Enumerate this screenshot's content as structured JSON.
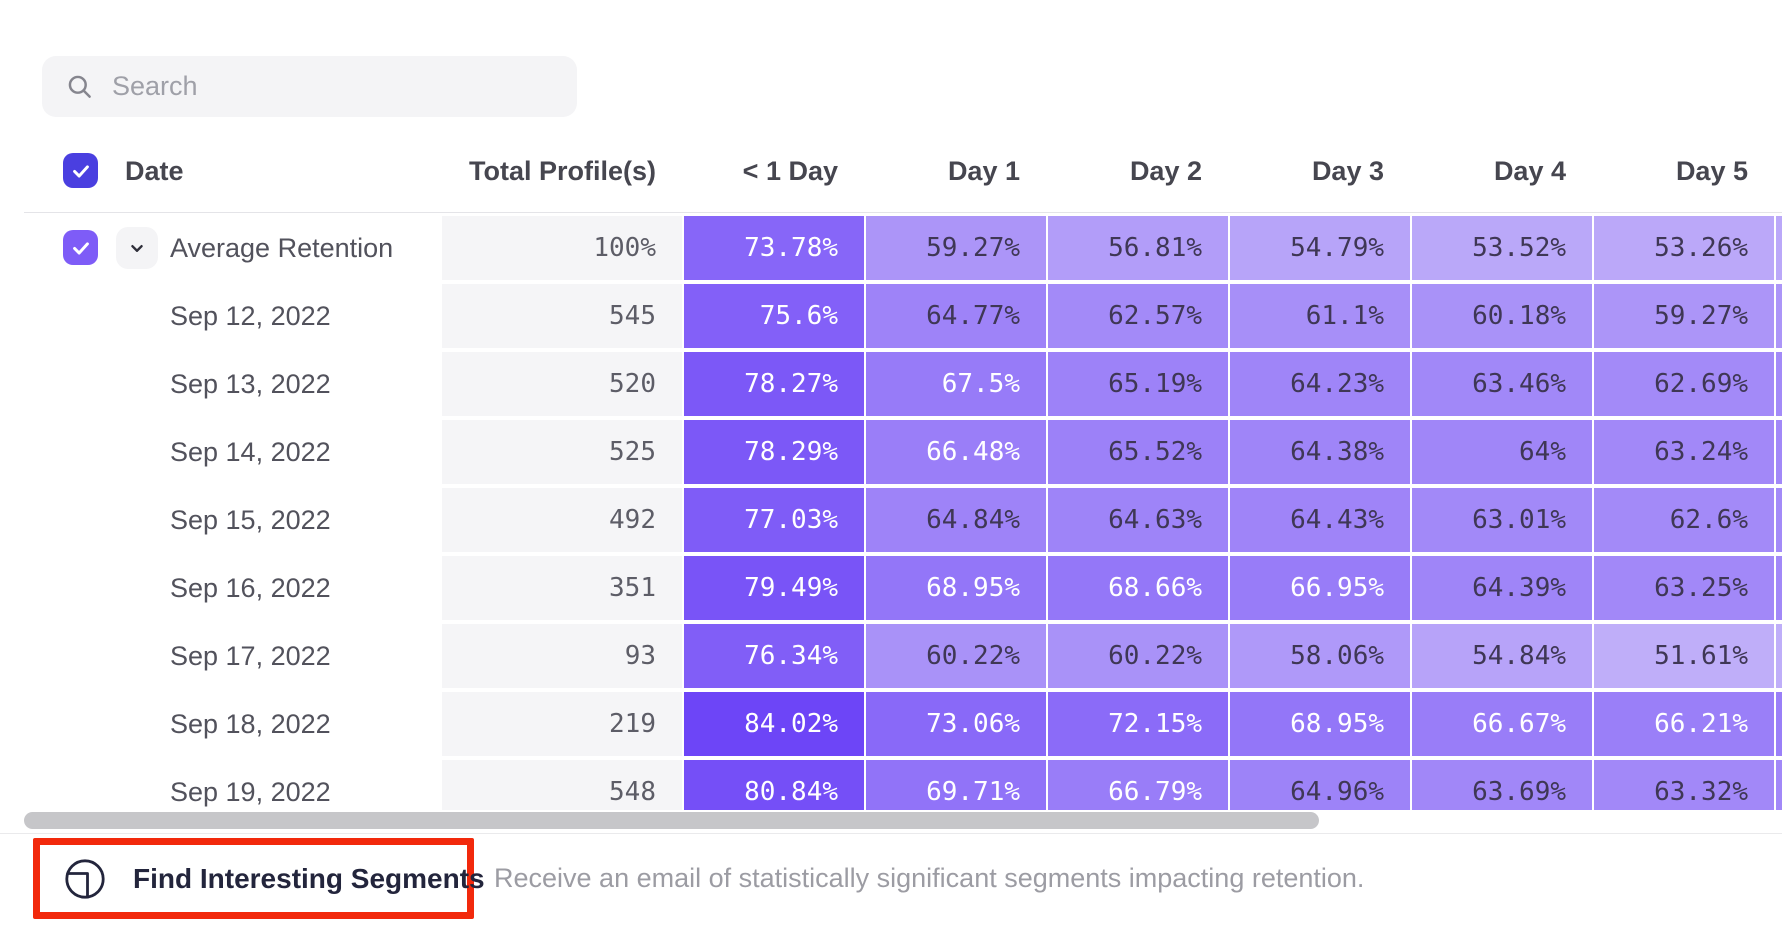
{
  "search": {
    "placeholder": "Search"
  },
  "table": {
    "date_header": "Date",
    "total_header": "Total Profile(s)",
    "day_headers": [
      "< 1 Day",
      "Day 1",
      "Day 2",
      "Day 3",
      "Day 4",
      "Day 5"
    ],
    "rows": [
      {
        "label": "Average Retention",
        "total": "100%",
        "checked": true,
        "expandable": true,
        "values": [
          "73.78%",
          "59.27%",
          "56.81%",
          "54.79%",
          "53.52%",
          "53.26%"
        ]
      },
      {
        "label": "Sep 12, 2022",
        "total": "545",
        "values": [
          "75.6%",
          "64.77%",
          "62.57%",
          "61.1%",
          "60.18%",
          "59.27%"
        ]
      },
      {
        "label": "Sep 13, 2022",
        "total": "520",
        "values": [
          "78.27%",
          "67.5%",
          "65.19%",
          "64.23%",
          "63.46%",
          "62.69%"
        ]
      },
      {
        "label": "Sep 14, 2022",
        "total": "525",
        "values": [
          "78.29%",
          "66.48%",
          "65.52%",
          "64.38%",
          "64%",
          "63.24%"
        ]
      },
      {
        "label": "Sep 15, 2022",
        "total": "492",
        "values": [
          "77.03%",
          "64.84%",
          "64.63%",
          "64.43%",
          "63.01%",
          "62.6%"
        ]
      },
      {
        "label": "Sep 16, 2022",
        "total": "351",
        "values": [
          "79.49%",
          "68.95%",
          "68.66%",
          "66.95%",
          "64.39%",
          "63.25%"
        ]
      },
      {
        "label": "Sep 17, 2022",
        "total": "93",
        "values": [
          "76.34%",
          "60.22%",
          "60.22%",
          "58.06%",
          "54.84%",
          "51.61%"
        ]
      },
      {
        "label": "Sep 18, 2022",
        "total": "219",
        "values": [
          "84.02%",
          "73.06%",
          "72.15%",
          "68.95%",
          "66.67%",
          "66.21%"
        ]
      },
      {
        "label": "Sep 19, 2022",
        "total": "548",
        "values": [
          "80.84%",
          "69.71%",
          "66.79%",
          "64.96%",
          "63.69%",
          "63.32%"
        ]
      }
    ],
    "heatmap": {
      "min_value": 50,
      "max_value": 85,
      "light_color": "#c3b3f9",
      "dark_color": "#6b42f7",
      "white_text_threshold": 66,
      "dark_text_color": "#3f3755"
    }
  },
  "footer": {
    "button_label": "Find Interesting Segments",
    "description": "Receive an email of statistically significant segments impacting retention.",
    "annotation_color": "#f2290c"
  },
  "colors": {
    "header_checkbox": "#4a3fe0",
    "row_checkbox": "#7e5cf7",
    "scrollbar_thumb": "#c6c6c9"
  }
}
